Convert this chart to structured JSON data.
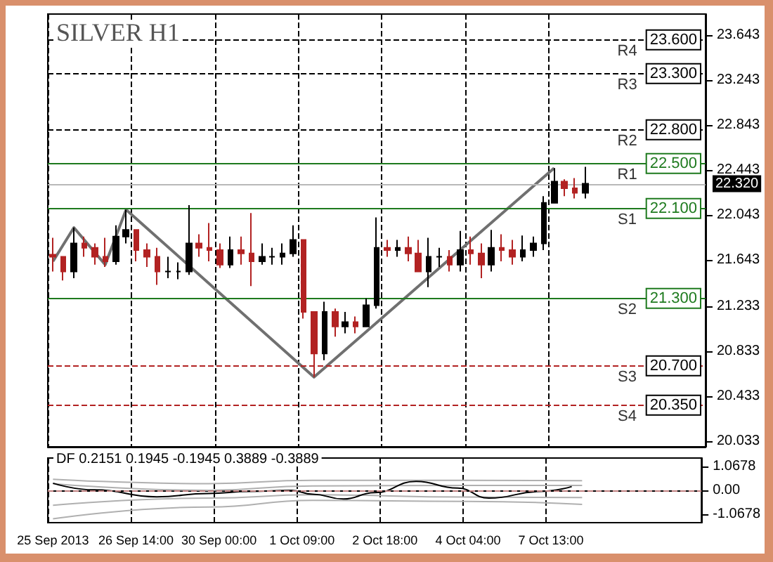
{
  "chart_data": [
    {
      "type": "candlestick",
      "title": "SILVER H1",
      "tick_labels": "y",
      "grid": "x",
      "categories": [
        null,
        null,
        null,
        null,
        null,
        null,
        null,
        null,
        null,
        null,
        null,
        null,
        null,
        null,
        null,
        null,
        null,
        null,
        null,
        null,
        null,
        null,
        null,
        null,
        null,
        null,
        null,
        null,
        null,
        null,
        null,
        null,
        null,
        null,
        null,
        null,
        null,
        null,
        null,
        null,
        null,
        null,
        null,
        null,
        null,
        null,
        null,
        null,
        null,
        null,
        null,
        null,
        null,
        null,
        null,
        null,
        null,
        null,
        null,
        null,
        null,
        null,
        null
      ],
      "ylim": [
        19.98,
        23.83
      ],
      "yticks": [
        23.643,
        23.243,
        22.843,
        22.443,
        22.043,
        21.643,
        21.233,
        20.833,
        20.433,
        20.033
      ],
      "ohlc": [
        [
          21.69,
          21.84,
          21.54,
          21.67
        ],
        [
          21.67,
          21.67,
          21.46,
          21.54
        ],
        [
          21.54,
          21.93,
          21.48,
          21.79
        ],
        [
          21.79,
          21.85,
          21.67,
          21.75
        ],
        [
          21.75,
          21.79,
          21.6,
          21.67
        ],
        [
          21.67,
          21.84,
          21.58,
          21.63
        ],
        [
          21.63,
          21.95,
          21.6,
          21.85
        ],
        [
          21.85,
          22.09,
          21.79,
          21.91
        ],
        [
          21.91,
          21.91,
          21.63,
          21.73
        ],
        [
          21.73,
          21.79,
          21.58,
          21.67
        ],
        [
          21.67,
          21.75,
          21.42,
          21.54
        ],
        [
          21.54,
          21.67,
          21.48,
          21.54
        ],
        [
          21.54,
          21.62,
          21.47,
          21.54
        ],
        [
          21.54,
          22.13,
          21.51,
          21.79
        ],
        [
          21.79,
          21.87,
          21.67,
          21.75
        ],
        [
          21.75,
          21.97,
          21.63,
          21.73
        ],
        [
          21.73,
          21.79,
          21.57,
          21.6
        ],
        [
          21.6,
          21.85,
          21.57,
          21.73
        ],
        [
          21.73,
          21.85,
          21.6,
          21.7
        ],
        [
          21.7,
          22.06,
          21.41,
          21.63
        ],
        [
          21.63,
          21.79,
          21.6,
          21.67
        ],
        [
          21.67,
          21.75,
          21.6,
          21.67
        ],
        [
          21.67,
          21.79,
          21.6,
          21.7
        ],
        [
          21.7,
          21.95,
          21.67,
          21.82
        ],
        [
          21.82,
          21.82,
          21.12,
          21.18
        ],
        [
          21.18,
          21.18,
          20.6,
          20.81
        ],
        [
          20.81,
          21.27,
          20.75,
          21.18
        ],
        [
          21.18,
          21.21,
          20.96,
          21.05
        ],
        [
          21.05,
          21.18,
          20.99,
          21.09
        ],
        [
          21.09,
          21.14,
          20.99,
          21.05
        ],
        [
          21.05,
          21.3,
          21.05,
          21.24
        ],
        [
          21.24,
          22.02,
          21.21,
          21.75
        ],
        [
          21.75,
          21.82,
          21.67,
          21.73
        ],
        [
          21.73,
          21.82,
          21.67,
          21.75
        ],
        [
          21.75,
          21.85,
          21.63,
          21.7
        ],
        [
          21.7,
          21.82,
          21.54,
          21.54
        ],
        [
          21.54,
          21.84,
          21.4,
          21.67
        ],
        [
          21.67,
          21.75,
          21.58,
          21.67
        ],
        [
          21.67,
          21.73,
          21.54,
          21.6
        ],
        [
          21.6,
          21.9,
          21.54,
          21.73
        ],
        [
          21.73,
          21.85,
          21.6,
          21.7
        ],
        [
          21.7,
          21.79,
          21.48,
          21.6
        ],
        [
          21.6,
          21.91,
          21.54,
          21.75
        ],
        [
          21.75,
          21.87,
          21.63,
          21.73
        ],
        [
          21.73,
          21.82,
          21.6,
          21.67
        ],
        [
          21.67,
          21.86,
          21.63,
          21.73
        ],
        [
          21.73,
          21.85,
          21.67,
          21.79
        ],
        [
          21.79,
          22.21,
          21.73,
          22.15
        ],
        [
          22.15,
          22.46,
          22.15,
          22.34
        ],
        [
          22.34,
          22.36,
          22.21,
          22.28
        ],
        [
          22.28,
          22.37,
          22.19,
          22.24
        ],
        [
          22.24,
          22.47,
          22.19,
          22.32
        ],
        null,
        null,
        null,
        null,
        null,
        null,
        null,
        null,
        null,
        null,
        null
      ],
      "colors": [
        "#b22222",
        "#b22222",
        "#000000",
        "#b22222",
        "#b22222",
        "#b22222",
        "#000000",
        "#000000",
        "#b22222",
        "#b22222",
        "#b22222",
        "#000000",
        "#000000",
        "#000000",
        "#b22222",
        "#b22222",
        "#b22222",
        "#000000",
        "#b22222",
        "#b22222",
        "#000000",
        "#000000",
        "#000000",
        "#000000",
        "#b22222",
        "#b22222",
        "#000000",
        "#b22222",
        "#000000",
        "#b22222",
        "#000000",
        "#000000",
        "#b22222",
        "#000000",
        "#b22222",
        "#b22222",
        "#000000",
        "#000000",
        "#b22222",
        "#000000",
        "#b22222",
        "#b22222",
        "#000000",
        "#b22222",
        "#b22222",
        "#000000",
        "#000000",
        "#000000",
        "#000000",
        "#b22222",
        "#b22222",
        "#000000",
        null,
        null,
        null,
        null,
        null,
        null,
        null,
        null,
        null,
        null,
        null
      ],
      "series": [
        {
          "type": "line",
          "color": "#707070",
          "values": [
            21.63,
            null,
            21.93,
            null,
            null,
            21.6,
            null,
            22.09,
            null,
            null,
            null,
            null,
            null,
            null,
            null,
            null,
            null,
            null,
            null,
            null,
            null,
            null,
            null,
            null,
            null,
            20.6,
            null,
            null,
            null,
            null,
            null,
            null,
            null,
            null,
            null,
            null,
            null,
            null,
            null,
            null,
            null,
            null,
            null,
            null,
            null,
            null,
            null,
            null,
            22.46,
            null,
            null,
            null,
            null,
            null,
            null,
            null,
            null,
            null,
            null,
            null,
            null,
            null,
            null
          ]
        }
      ],
      "annotations": [
        {
          "text": "R4",
          "y": 23.6
        },
        {
          "text": "R3",
          "y": 23.3
        },
        {
          "text": "R2",
          "y": 22.8
        },
        {
          "text": "R1",
          "y": 22.5
        },
        {
          "text": "S1",
          "y": 22.1
        },
        {
          "text": "S2",
          "y": 21.3
        },
        {
          "text": "S3",
          "y": 20.7
        },
        {
          "text": "S4",
          "y": 20.35
        }
      ],
      "ref_lines": [
        {
          "axis": "y",
          "value": 23.6,
          "label": "23.600",
          "color": "#000000",
          "line_style": "dashed"
        },
        {
          "axis": "y",
          "value": 23.3,
          "label": "23.300",
          "color": "#000000",
          "line_style": "dashed"
        },
        {
          "axis": "y",
          "value": 22.8,
          "label": "22.800",
          "color": "#000000",
          "line_style": "dashed"
        },
        {
          "axis": "y",
          "value": 22.5,
          "label": "22.500",
          "color": "#1e7a1e",
          "line_style": "solid"
        },
        {
          "axis": "y",
          "value": 22.32,
          "label": "22.320",
          "color": "#b8b8b8",
          "line_style": "solid"
        },
        {
          "axis": "y",
          "value": 22.1,
          "label": "22.100",
          "color": "#1e7a1e",
          "line_style": "solid"
        },
        {
          "axis": "y",
          "value": 21.3,
          "label": "21.300",
          "color": "#1e7a1e",
          "line_style": "solid"
        },
        {
          "axis": "y",
          "value": 20.7,
          "label": "20.700",
          "color": "#b22222",
          "line_style": "dashed"
        },
        {
          "axis": "y",
          "value": 20.35,
          "label": "20.350",
          "color": "#b22222",
          "line_style": "dashed"
        }
      ]
    },
    {
      "type": "line",
      "title": "DF 0.2151 0.1945 -0.1945 0.3889 -0.3889",
      "grid": "x",
      "marker": "none",
      "categories": [
        "25 Sep 2013",
        null,
        null,
        null,
        null,
        null,
        null,
        null,
        "26 Sep 14:00",
        null,
        null,
        null,
        null,
        null,
        null,
        null,
        "30 Sep 00:00",
        null,
        null,
        null,
        null,
        null,
        null,
        null,
        "1 Oct 09:00",
        null,
        null,
        null,
        null,
        null,
        null,
        null,
        "2 Oct 18:00",
        null,
        null,
        null,
        null,
        null,
        null,
        null,
        "4 Oct 04:00",
        null,
        null,
        null,
        null,
        null,
        null,
        null,
        "7 Oct 13:00",
        null,
        null,
        null,
        null,
        null,
        null,
        null,
        null,
        null,
        null,
        null,
        null,
        null,
        null
      ],
      "ylim": [
        -1.45,
        1.45
      ],
      "yticks": [
        1.0678,
        {
          "value": 0,
          "label": "0.00"
        },
        -1.0678
      ],
      "series": [
        {
          "color": "#b0b0b0",
          "values": [
            0.5,
            null,
            null,
            null,
            null,
            null,
            null,
            null,
            null,
            null,
            null,
            null,
            null,
            null,
            null,
            0.3,
            null,
            null,
            null,
            null,
            null,
            null,
            null,
            null,
            null,
            0.45,
            null,
            null,
            null,
            null,
            null,
            null,
            null,
            null,
            null,
            null,
            null,
            null,
            null,
            null,
            0.45,
            null,
            null,
            null,
            null,
            null,
            null,
            null,
            null,
            null,
            null,
            0.43,
            null,
            null,
            null,
            null,
            null,
            null,
            null,
            null,
            null,
            null,
            null
          ]
        },
        {
          "color": "#b0b0b0",
          "values": [
            0.3,
            null,
            null,
            null,
            null,
            null,
            null,
            null,
            null,
            null,
            null,
            null,
            null,
            null,
            null,
            0.0,
            null,
            null,
            null,
            null,
            null,
            null,
            null,
            null,
            null,
            0.2,
            null,
            null,
            null,
            null,
            null,
            null,
            null,
            null,
            null,
            null,
            null,
            null,
            null,
            null,
            0.22,
            null,
            null,
            null,
            null,
            null,
            null,
            null,
            null,
            null,
            null,
            0.22,
            null,
            null,
            null,
            null,
            null,
            null,
            null,
            null,
            null,
            null,
            null
          ]
        },
        {
          "color": "#b0b0b0",
          "values": [
            -0.67,
            null,
            null,
            null,
            null,
            null,
            null,
            null,
            null,
            null,
            null,
            null,
            null,
            null,
            null,
            -0.35,
            null,
            null,
            null,
            null,
            null,
            null,
            null,
            null,
            null,
            -0.2,
            null,
            null,
            null,
            null,
            null,
            null,
            null,
            null,
            null,
            null,
            null,
            null,
            null,
            null,
            -0.3,
            null,
            null,
            null,
            null,
            null,
            null,
            null,
            null,
            null,
            null,
            -0.32,
            null,
            null,
            null,
            null,
            null,
            null,
            null,
            null,
            null,
            null,
            null
          ]
        },
        {
          "color": "#b0b0b0",
          "values": [
            -1.28,
            null,
            null,
            null,
            null,
            null,
            null,
            null,
            null,
            null,
            null,
            null,
            null,
            null,
            null,
            -0.75,
            null,
            null,
            null,
            null,
            null,
            null,
            null,
            null,
            null,
            -0.45,
            null,
            null,
            null,
            null,
            null,
            null,
            null,
            null,
            null,
            null,
            null,
            null,
            null,
            null,
            -0.5,
            null,
            null,
            null,
            null,
            null,
            null,
            null,
            null,
            null,
            null,
            -0.63,
            null,
            null,
            null,
            null,
            null,
            null,
            null,
            null,
            null,
            null,
            null
          ]
        },
        {
          "color": "#000000",
          "values": [
            0.32,
            null,
            null,
            null,
            0.02,
            null,
            null,
            null,
            null,
            null,
            -0.29,
            null,
            null,
            null,
            null,
            -0.14,
            null,
            null,
            null,
            -0.05,
            null,
            null,
            null,
            0.0,
            null,
            -0.17,
            null,
            null,
            -0.39,
            null,
            null,
            -0.1,
            null,
            null,
            null,
            0.4,
            null,
            null,
            null,
            0.1,
            null,
            null,
            -0.35,
            null,
            null,
            null,
            null,
            -0.05,
            null,
            null,
            0.17,
            null,
            null,
            null,
            null,
            null,
            null,
            null,
            null,
            null,
            null,
            null,
            null
          ]
        }
      ],
      "ref_lines": [
        {
          "axis": "y",
          "value": 0,
          "color": "#c08080",
          "line_style": "dashed"
        }
      ]
    }
  ]
}
